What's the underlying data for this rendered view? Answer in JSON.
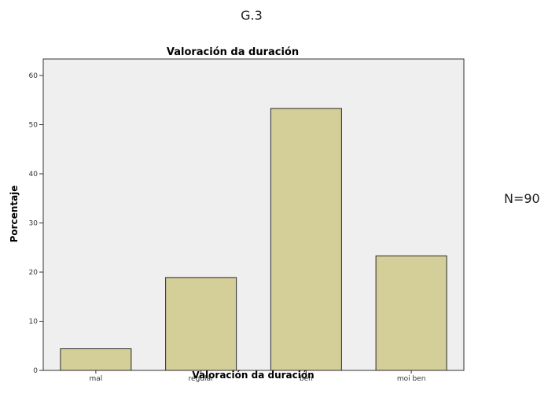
{
  "figure_label": "G.3",
  "annotation": "N=90",
  "colors": {
    "plot_background": "#efefef",
    "bar_fill": "#d4ce98",
    "bar_stroke": "#2b2b2b",
    "axis": "#333333"
  },
  "chart_data": {
    "type": "bar",
    "title": "Valoración da duración",
    "xlabel": "Valoración da duración",
    "ylabel": "Porcentaje",
    "categories": [
      "mal",
      "regular",
      "ben",
      "moi ben"
    ],
    "values": [
      4.4,
      18.9,
      53.3,
      23.3
    ],
    "ylim": [
      0,
      60
    ],
    "yticks": [
      0,
      10,
      20,
      30,
      40,
      50,
      60
    ],
    "grid": false,
    "legend": false
  }
}
